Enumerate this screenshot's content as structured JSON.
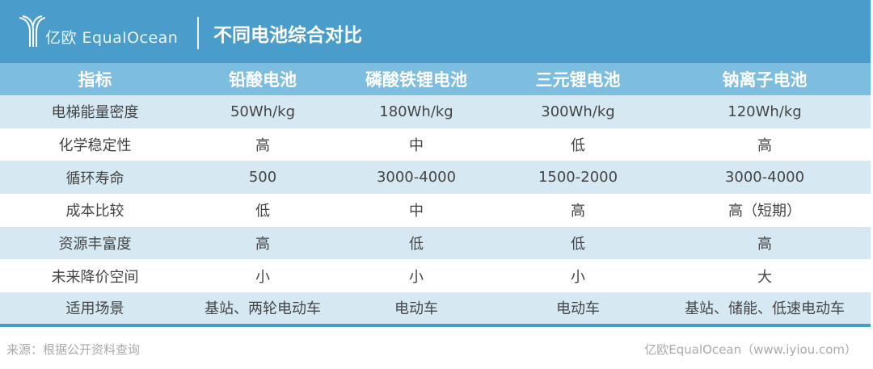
{
  "header": {
    "brand": "亿欧 EqualOcean",
    "title": "不同电池综合对比"
  },
  "table": {
    "columns": [
      "指标",
      "铅酸电池",
      "磷酸铁锂电池",
      "三元锂电池",
      "钠离子电池"
    ],
    "rows": [
      [
        "电梯能量密度",
        "50Wh/kg",
        "180Wh/kg",
        "300Wh/kg",
        "120Wh/kg"
      ],
      [
        "化学稳定性",
        "高",
        "中",
        "低",
        "高"
      ],
      [
        "循环寿命",
        "500",
        "3000-4000",
        "1500-2000",
        "3000-4000"
      ],
      [
        "成本比较",
        "低",
        "中",
        "高",
        "高（短期）"
      ],
      [
        "资源丰富度",
        "高",
        "低",
        "低",
        "高"
      ],
      [
        "未来降价空间",
        "小",
        "小",
        "小",
        "大"
      ],
      [
        "适用场景",
        "基站、两轮电动车",
        "电动车",
        "电动车",
        "基站、储能、低速电动车"
      ]
    ]
  },
  "footer": {
    "source": "来源：根据公开资料查询",
    "credit": "亿欧EqualOcean（www.iyiou.com）"
  },
  "colors": {
    "banner": "#4a9ccb",
    "header_row": "#7dbde0",
    "stripe": "#d6e9f3"
  }
}
